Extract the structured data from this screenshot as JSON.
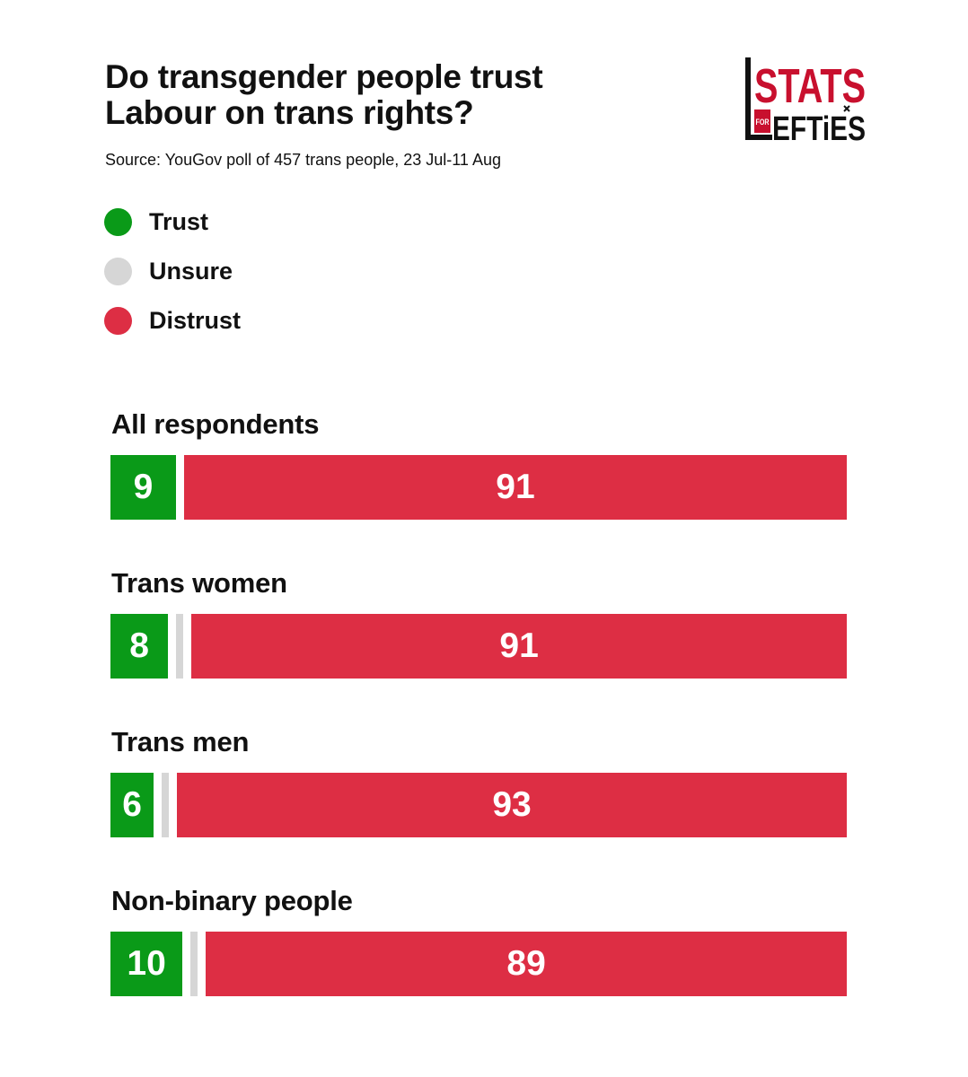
{
  "chart_data": {
    "type": "bar",
    "orientation": "horizontal-stacked",
    "title_lines": [
      "Do transgender people trust",
      "Labour on trans rights?"
    ],
    "subtitle": "Source: YouGov poll of 457 trans people, 23 Jul-11 Aug",
    "legend": [
      {
        "name": "Trust",
        "color": "#0a9a18"
      },
      {
        "name": "Unsure",
        "color": "#d6d6d6"
      },
      {
        "name": "Distrust",
        "color": "#dd2e44"
      }
    ],
    "legend_position": "top-left",
    "categories": [
      "All respondents",
      "Trans women",
      "Trans men",
      "Non-binary people"
    ],
    "series": [
      {
        "name": "Trust",
        "values": [
          9,
          8,
          6,
          10
        ]
      },
      {
        "name": "Unsure",
        "values": [
          0,
          1,
          1,
          1
        ]
      },
      {
        "name": "Distrust",
        "values": [
          91,
          91,
          93,
          89
        ]
      }
    ],
    "xlim": [
      0,
      100
    ],
    "grid": false
  },
  "logo": {
    "text_top": "STATS",
    "text_small": "FOR",
    "text_bottom": "EFTiES",
    "color_red": "#c8102e",
    "color_black": "#111111"
  }
}
